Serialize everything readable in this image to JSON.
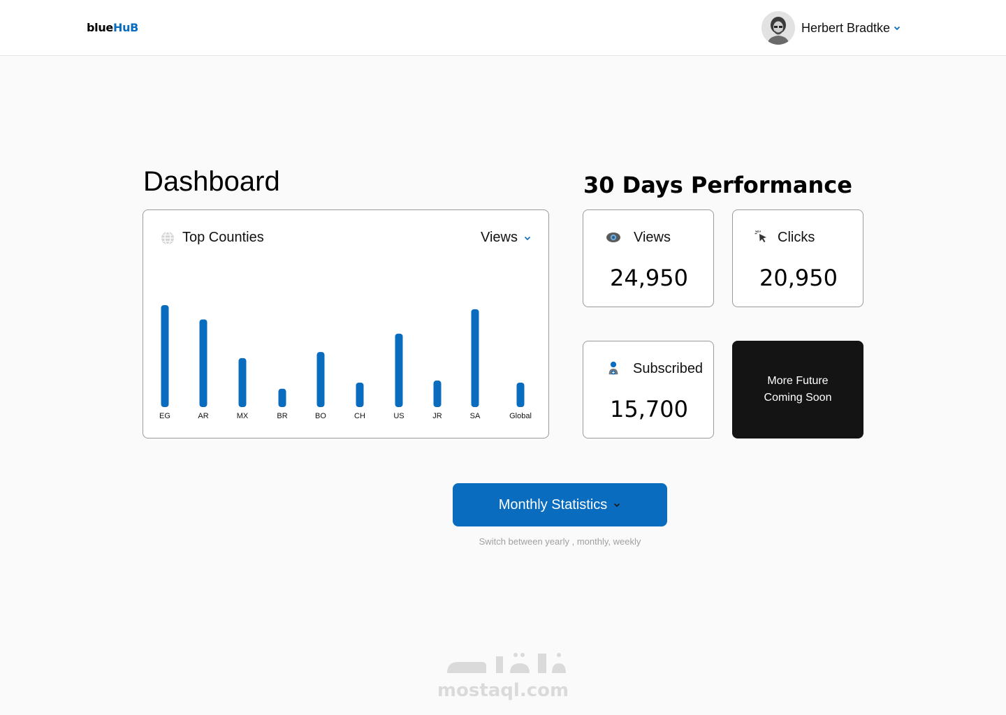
{
  "header": {
    "logo_part1": "blue",
    "logo_part2": "HuB",
    "user_name": "Herbert Bradtke",
    "accent": "#0a6cbf"
  },
  "dashboard": {
    "title": "Dashboard",
    "card_title": "Top Counties",
    "metric_selected": "Views"
  },
  "chart_data": {
    "type": "bar",
    "categories": [
      "EG",
      "AR",
      "MX",
      "BR",
      "BO",
      "CH",
      "US",
      "JR",
      "SA",
      "Global"
    ],
    "values": [
      100,
      86,
      48,
      18,
      54,
      24,
      72,
      26,
      96,
      24
    ],
    "ylim": [
      0,
      100
    ],
    "grid": false,
    "color": "#0a6cbf"
  },
  "performance": {
    "title": "30 Days Performance",
    "cards": [
      {
        "label": "Views",
        "value": "24,950",
        "icon": "eye-icon"
      },
      {
        "label": "Clicks",
        "value": "20,950",
        "icon": "cursor-click-icon"
      },
      {
        "label": "Subscribed",
        "value": "15,700",
        "icon": "user-add-icon"
      }
    ],
    "coming_soon": "More Future Coming Soon"
  },
  "stats_button": {
    "label": "Monthly Statistics",
    "hint": "Switch between yearly , monthly, weekly"
  },
  "watermark": {
    "text": "mostaql.com"
  }
}
